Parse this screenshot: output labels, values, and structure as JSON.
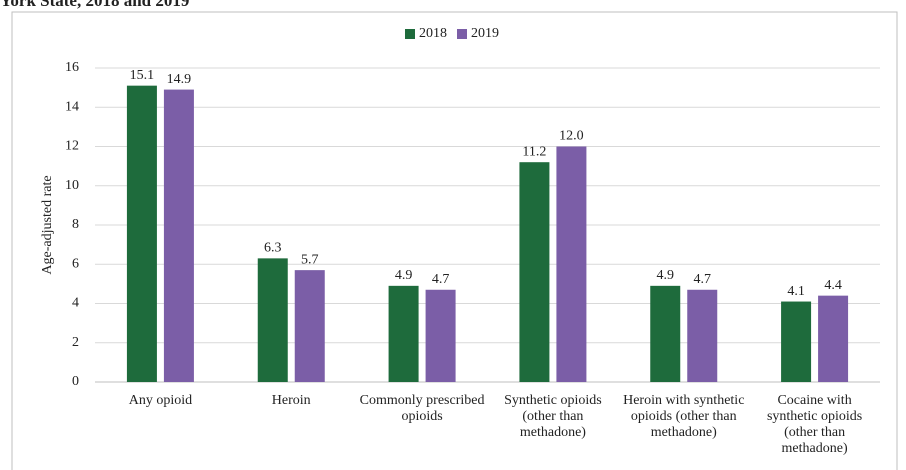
{
  "chart_data": {
    "type": "bar",
    "title": "York State, 2018 and 2019",
    "y_label": "Age-adjusted rate",
    "categories": [
      "Any opioid",
      "Heroin",
      "Commonly prescribed opioids",
      "Synthetic opioids (other than methadone)",
      "Heroin with synthetic opioids (other than methadone)",
      "Cocaine with synthetic opioids (other than methadone)"
    ],
    "series": [
      {
        "name": "2018",
        "color": "#1e6b3c",
        "values": [
          15.1,
          6.3,
          4.9,
          11.2,
          4.9,
          4.1
        ],
        "value_labels": [
          "15.1",
          "6.3",
          "4.9",
          "11.2",
          "4.9",
          "4.1"
        ]
      },
      {
        "name": "2019",
        "color": "#7b5ea7",
        "values": [
          14.9,
          5.7,
          4.7,
          12,
          4.7,
          4.4
        ],
        "value_labels": [
          "14.9",
          "5.7",
          "4.7",
          "12.0",
          "4.7",
          "4.4"
        ]
      }
    ],
    "ylim": [
      0,
      16
    ],
    "yticks": [
      0,
      2,
      4,
      6,
      8,
      10,
      12,
      14,
      16
    ],
    "grid": true,
    "legend": "top"
  }
}
